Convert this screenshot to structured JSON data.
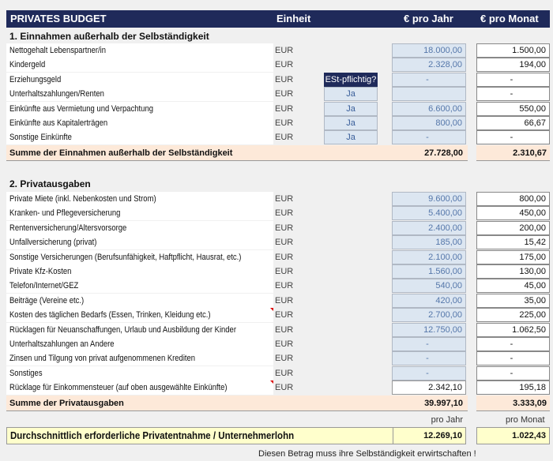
{
  "header": {
    "title": "PRIVATES  BUDGET",
    "unit": "Einheit",
    "year": "€ pro Jahr",
    "month": "€ pro Monat"
  },
  "section1": {
    "title": "1. Einnahmen außerhalb der Selbständigkeit",
    "est_header": "ESt-pflichtig?",
    "rows": [
      {
        "label": "Nettogehalt Lebenspartner/in",
        "unit": "EUR",
        "est": null,
        "year": "18.000,00",
        "month": "1.500,00"
      },
      {
        "label": "Kindergeld",
        "unit": "EUR",
        "est": null,
        "year": "2.328,00",
        "month": "194,00"
      },
      {
        "label": "Erziehungsgeld",
        "unit": "EUR",
        "est": "ESt-pflichtig?",
        "year": "-",
        "month": "-"
      },
      {
        "label": "Unterhaltszahlungen/Renten",
        "unit": "EUR",
        "est": "Ja",
        "year": "",
        "month": "-"
      },
      {
        "label": "Einkünfte aus Vermietung und Verpachtung",
        "unit": "EUR",
        "est": "Ja",
        "year": "6.600,00",
        "month": "550,00"
      },
      {
        "label": "Einkünfte aus Kapitalerträgen",
        "unit": "EUR",
        "est": "Ja",
        "year": "800,00",
        "month": "66,67"
      },
      {
        "label": "Sonstige Einkünfte",
        "unit": "EUR",
        "est": "Ja",
        "year": "-",
        "month": "-"
      }
    ],
    "sum": {
      "label": "Summe der Einnahmen außerhalb der Selbständigkeit",
      "year": "27.728,00",
      "month": "2.310,67"
    }
  },
  "section2": {
    "title": "2. Privatausgaben",
    "rows": [
      {
        "label": "Private Miete (inkl. Nebenkosten und Strom)",
        "unit": "EUR",
        "year": "9.600,00",
        "month": "800,00"
      },
      {
        "label": "Kranken- und Pflegeversicherung",
        "unit": "EUR",
        "year": "5.400,00",
        "month": "450,00"
      },
      {
        "label": "Rentenversicherung/Altersvorsorge",
        "unit": "EUR",
        "year": "2.400,00",
        "month": "200,00"
      },
      {
        "label": "Unfallversicherung (privat)",
        "unit": "EUR",
        "year": "185,00",
        "month": "15,42"
      },
      {
        "label": "Sonstige Versicherungen (Berufsunfähigkeit, Haftpflicht, Hausrat, etc.)",
        "unit": "EUR",
        "year": "2.100,00",
        "month": "175,00"
      },
      {
        "label": "Private Kfz-Kosten",
        "unit": "EUR",
        "year": "1.560,00",
        "month": "130,00"
      },
      {
        "label": "Telefon/Internet/GEZ",
        "unit": "EUR",
        "year": "540,00",
        "month": "45,00"
      },
      {
        "label": "Beiträge (Vereine etc.)",
        "unit": "EUR",
        "year": "420,00",
        "month": "35,00"
      },
      {
        "label": "Kosten des täglichen Bedarfs (Essen, Trinken, Kleidung etc.)",
        "unit": "EUR",
        "year": "2.700,00",
        "month": "225,00",
        "comment": true
      },
      {
        "label": "Rücklagen für Neuanschaffungen, Urlaub und Ausbildung der Kinder",
        "unit": "EUR",
        "year": "12.750,00",
        "month": "1.062,50"
      },
      {
        "label": "Unterhaltszahlungen an Andere",
        "unit": "EUR",
        "year": "-",
        "month": "-"
      },
      {
        "label": "Zinsen und Tilgung von privat aufgenommenen Krediten",
        "unit": "EUR",
        "year": "-",
        "month": "-"
      },
      {
        "label": "Sonstiges",
        "unit": "EUR",
        "year": "-",
        "month": "-"
      },
      {
        "label": "Rücklage für Einkommensteuer (auf oben ausgewählte Einkünfte)",
        "unit": "EUR",
        "year": "2.342,10",
        "month": "195,18",
        "comment": true,
        "computed": true
      }
    ],
    "sum": {
      "label": "Summe der Privatausgaben",
      "year": "39.997,10",
      "month": "3.333,09"
    }
  },
  "result": {
    "year_label": "pro Jahr",
    "month_label": "pro Monat",
    "label": "Durchschnittlich erforderliche Privatentnahme / Unternehmerlohn",
    "year": "12.269,10",
    "month": "1.022,43",
    "note": "Diesen Betrag muss ihre Selbständigkeit erwirtschaften !"
  },
  "colors": {
    "header": "#1f2a5a",
    "input": "#dce6f1",
    "sum": "#fde9d9",
    "result": "#ffffcc"
  }
}
